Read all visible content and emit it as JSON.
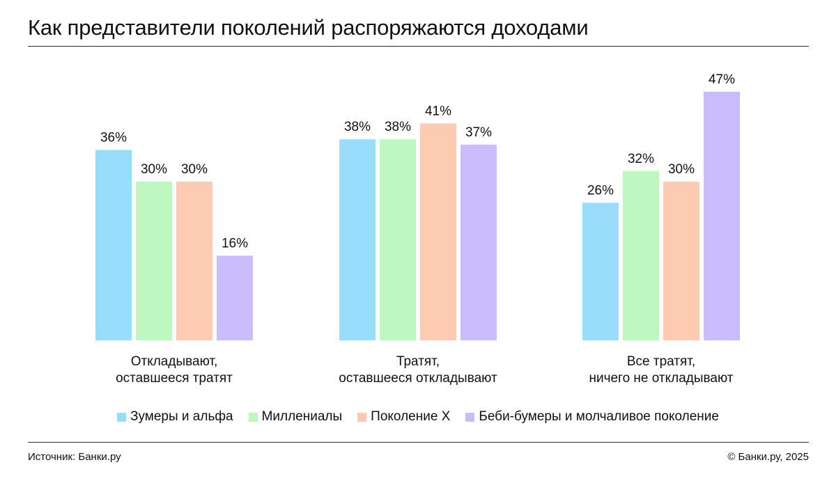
{
  "header": {
    "title": "Как представители поколений распоряжаются доходами"
  },
  "chart_data": {
    "type": "bar",
    "title": "Как представители поколений распоряжаются доходами",
    "xlabel": "",
    "ylabel": "",
    "ylim": [
      0,
      50
    ],
    "grid": false,
    "legend_position": "bottom",
    "value_suffix": "%",
    "categories": [
      [
        "Откладывают,",
        "оставшееся тратят"
      ],
      [
        "Тратят,",
        "оставшееся откладывают"
      ],
      [
        "Все тратят,",
        "ничего не откладывают"
      ]
    ],
    "series": [
      {
        "name": "Зумеры и альфа",
        "color": "#99dcfc",
        "values": [
          36,
          38,
          26
        ]
      },
      {
        "name": "Миллениалы",
        "color": "#bff7c0",
        "values": [
          30,
          38,
          32
        ]
      },
      {
        "name": "Поколение X",
        "color": "#fccbb1",
        "values": [
          30,
          41,
          30
        ]
      },
      {
        "name": "Беби-бумеры и молчаливое поколение",
        "color": "#c9bdfd",
        "values": [
          16,
          37,
          47
        ]
      }
    ]
  },
  "footer": {
    "source": "Источник: Банки.ру",
    "copyright": "© Банки.ру, 2025"
  }
}
